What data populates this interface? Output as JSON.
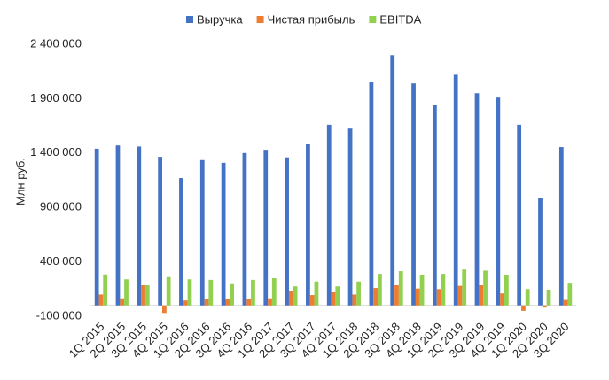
{
  "chart_data": {
    "type": "bar",
    "y_label": "Млн руб.",
    "categories": [
      "1Q 2015",
      "2Q 2015",
      "3Q 2015",
      "4Q 2015",
      "1Q 2016",
      "2Q 2016",
      "3Q 2016",
      "4Q 2016",
      "1Q 2017",
      "2Q 2017",
      "3Q 2017",
      "4Q 2017",
      "1Q 2018",
      "2Q 2018",
      "3Q 2018",
      "4Q 2018",
      "1Q 2019",
      "2Q 2019",
      "3Q 2019",
      "4Q 2019",
      "1Q 2020",
      "2Q 2020",
      "3Q 2020"
    ],
    "series": [
      {
        "name": "Выручка",
        "color": "#4472c4",
        "values": [
          1440000,
          1470000,
          1460000,
          1365000,
          1170000,
          1335000,
          1310000,
          1400000,
          1430000,
          1360000,
          1480000,
          1660000,
          1625000,
          2050000,
          2300000,
          2040000,
          1845000,
          2120000,
          1950000,
          1910000,
          1660000,
          985000,
          1455000
        ]
      },
      {
        "name": "Чистая прибыль",
        "color": "#ed7d31",
        "values": [
          100000,
          65000,
          185000,
          -70000,
          45000,
          60000,
          55000,
          55000,
          65000,
          135000,
          95000,
          120000,
          100000,
          160000,
          185000,
          155000,
          150000,
          180000,
          185000,
          110000,
          -50000,
          -20000,
          50000
        ]
      },
      {
        "name": "EBITDA",
        "color": "#92d050",
        "values": [
          285000,
          240000,
          185000,
          260000,
          240000,
          235000,
          195000,
          235000,
          250000,
          175000,
          220000,
          175000,
          220000,
          290000,
          315000,
          275000,
          290000,
          330000,
          320000,
          275000,
          150000,
          145000,
          200000
        ]
      }
    ],
    "ylim": [
      -100000,
      2400000
    ],
    "yticks": [
      {
        "value": -100000,
        "label": "-100 000"
      },
      {
        "value": 400000,
        "label": "400 000"
      },
      {
        "value": 900000,
        "label": "900 000"
      },
      {
        "value": 1400000,
        "label": "1 400 000"
      },
      {
        "value": 1900000,
        "label": "1 900 000"
      },
      {
        "value": 2400000,
        "label": "2 400 000"
      }
    ],
    "grid": false,
    "legend": "top"
  }
}
